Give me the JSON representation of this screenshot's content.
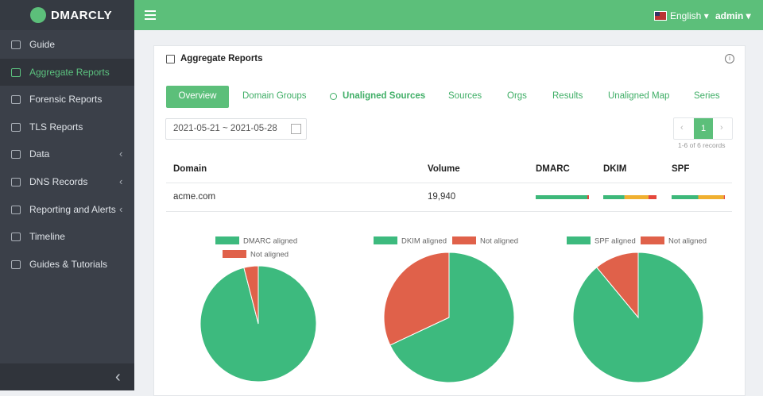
{
  "brand": "DMARCLY",
  "sidebar": {
    "items": [
      {
        "label": "Guide",
        "submenu": false
      },
      {
        "label": "Aggregate Reports",
        "submenu": false,
        "active": true
      },
      {
        "label": "Forensic Reports",
        "submenu": false
      },
      {
        "label": "TLS Reports",
        "submenu": false
      },
      {
        "label": "Data",
        "submenu": true
      },
      {
        "label": "DNS Records",
        "submenu": true
      },
      {
        "label": "Reporting and Alerts",
        "submenu": true
      },
      {
        "label": "Timeline",
        "submenu": false
      },
      {
        "label": "Guides & Tutorials",
        "submenu": false
      }
    ]
  },
  "topbar": {
    "language": "English",
    "user": "admin"
  },
  "panel": {
    "title": "Aggregate Reports",
    "tabs": [
      "Overview",
      "Domain Groups",
      "Unaligned Sources",
      "Sources",
      "Orgs",
      "Results",
      "Unaligned Map",
      "Series"
    ],
    "date_range": "2021-05-21 ~ 2021-05-28",
    "pagination": {
      "page": 1,
      "summary": "1-6 of 6 records"
    }
  },
  "table": {
    "columns": [
      "Domain",
      "Volume",
      "DMARC",
      "DKIM",
      "SPF"
    ],
    "segment_colors": [
      "#3db87a",
      "#f0b030",
      "#e5473c"
    ],
    "rows": [
      {
        "domain": "acme.com",
        "volume": "19,940",
        "dmarc": [
          97,
          0,
          3
        ],
        "dkim": [
          40,
          45,
          15
        ],
        "spf": [
          50,
          48,
          2
        ]
      }
    ]
  },
  "chart_data": [
    {
      "type": "pie",
      "categories": [
        "DMARC aligned",
        "Not aligned"
      ],
      "values": [
        96,
        4
      ],
      "colors": [
        "#3dba7e",
        "#e0614a"
      ]
    },
    {
      "type": "pie",
      "categories": [
        "DKIM aligned",
        "Not aligned"
      ],
      "values": [
        68,
        32
      ],
      "colors": [
        "#3dba7e",
        "#e0614a"
      ]
    },
    {
      "type": "pie",
      "categories": [
        "SPF aligned",
        "Not aligned"
      ],
      "values": [
        89,
        11
      ],
      "colors": [
        "#3dba7e",
        "#e0614a"
      ]
    }
  ]
}
